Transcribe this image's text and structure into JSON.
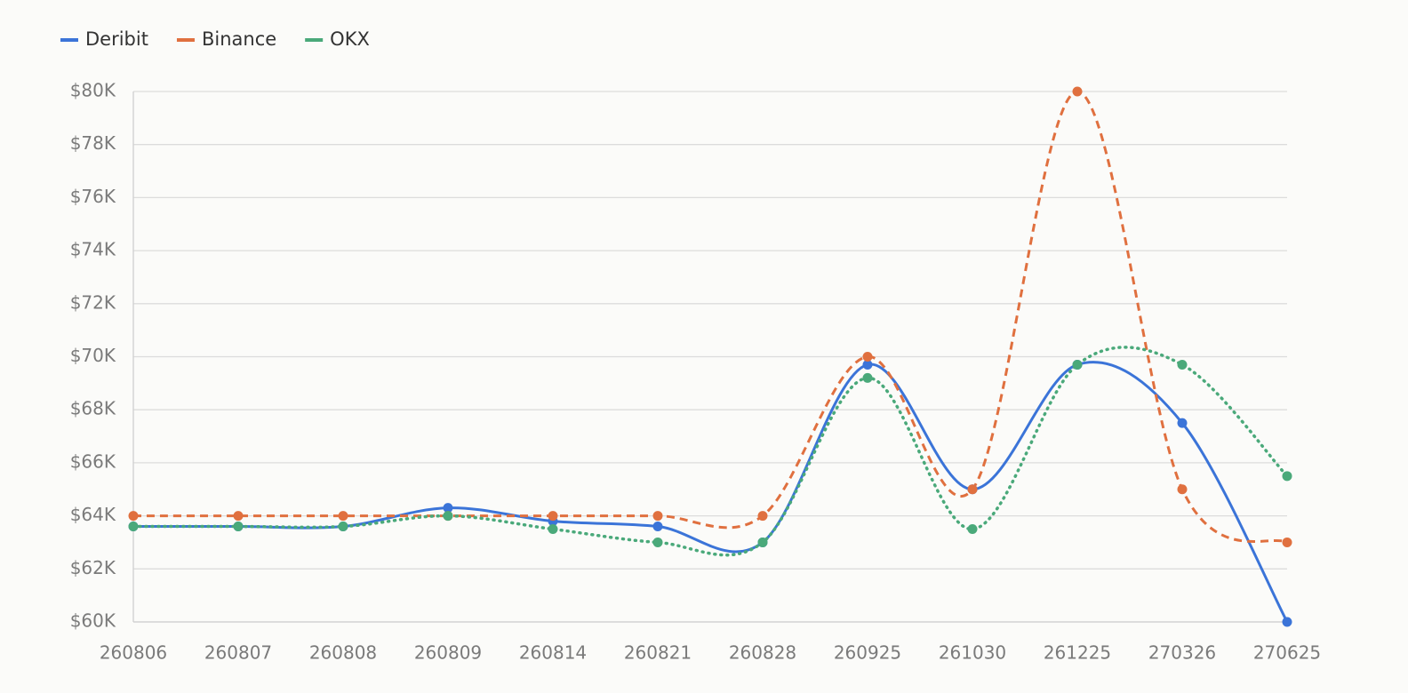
{
  "chart_data": {
    "type": "line",
    "categories": [
      "260806",
      "260807",
      "260808",
      "260809",
      "260814",
      "260821",
      "260828",
      "260925",
      "261030",
      "261225",
      "270326",
      "270625"
    ],
    "series": [
      {
        "name": "Deribit",
        "color": "#3b74d8",
        "dash": "solid",
        "values": [
          63600,
          63600,
          63600,
          64300,
          63800,
          63600,
          63000,
          69700,
          65000,
          69700,
          67500,
          60000
        ]
      },
      {
        "name": "Binance",
        "color": "#e0703f",
        "dash": "dashed",
        "values": [
          64000,
          64000,
          64000,
          64000,
          64000,
          64000,
          64000,
          70000,
          65000,
          80000,
          65000,
          63000
        ]
      },
      {
        "name": "OKX",
        "color": "#4aa97a",
        "dash": "dotted",
        "values": [
          63600,
          63600,
          63600,
          64000,
          63500,
          63000,
          63000,
          69200,
          63500,
          69700,
          69700,
          65500
        ]
      }
    ],
    "ylim": [
      60000,
      80000
    ],
    "yticks": [
      {
        "value": 60000,
        "label": "$60K"
      },
      {
        "value": 62000,
        "label": "$62K"
      },
      {
        "value": 64000,
        "label": "$64K"
      },
      {
        "value": 66000,
        "label": "$66K"
      },
      {
        "value": 68000,
        "label": "$68K"
      },
      {
        "value": 70000,
        "label": "$70K"
      },
      {
        "value": 72000,
        "label": "$72K"
      },
      {
        "value": 74000,
        "label": "$74K"
      },
      {
        "value": 76000,
        "label": "$76K"
      },
      {
        "value": 78000,
        "label": "$78K"
      },
      {
        "value": 80000,
        "label": "$80K"
      }
    ],
    "grid": true,
    "legend": "top-left",
    "smooth": true
  }
}
